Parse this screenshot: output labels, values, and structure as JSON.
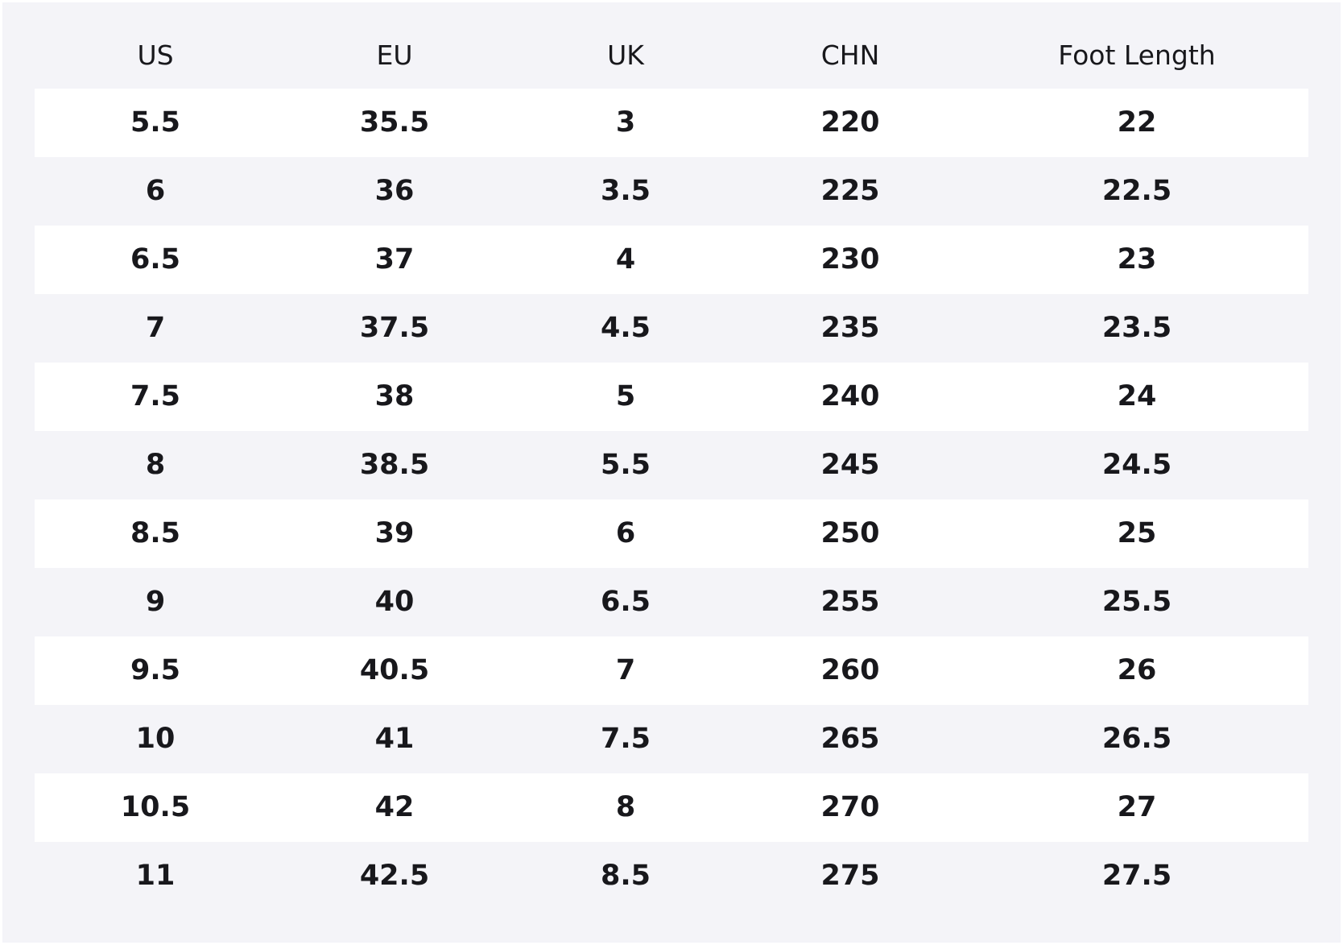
{
  "table": {
    "header": [
      "US",
      "EU",
      "UK",
      "CHN",
      "Foot Length"
    ],
    "rows": [
      [
        "5.5",
        "35.5",
        "3",
        "220",
        "22"
      ],
      [
        "6",
        "36",
        "3.5",
        "225",
        "22.5"
      ],
      [
        "6.5",
        "37",
        "4",
        "230",
        "23"
      ],
      [
        "7",
        "37.5",
        "4.5",
        "235",
        "23.5"
      ],
      [
        "7.5",
        "38",
        "5",
        "240",
        "24"
      ],
      [
        "8",
        "38.5",
        "5.5",
        "245",
        "24.5"
      ],
      [
        "8.5",
        "39",
        "6",
        "250",
        "25"
      ],
      [
        "9",
        "40",
        "6.5",
        "255",
        "25.5"
      ],
      [
        "9.5",
        "40.5",
        "7",
        "260",
        "26"
      ],
      [
        "10",
        "41",
        "7.5",
        "265",
        "26.5"
      ],
      [
        "10.5",
        "42",
        "8",
        "270",
        "27"
      ],
      [
        "11",
        "42.5",
        "8.5",
        "275",
        "27.5"
      ]
    ]
  }
}
